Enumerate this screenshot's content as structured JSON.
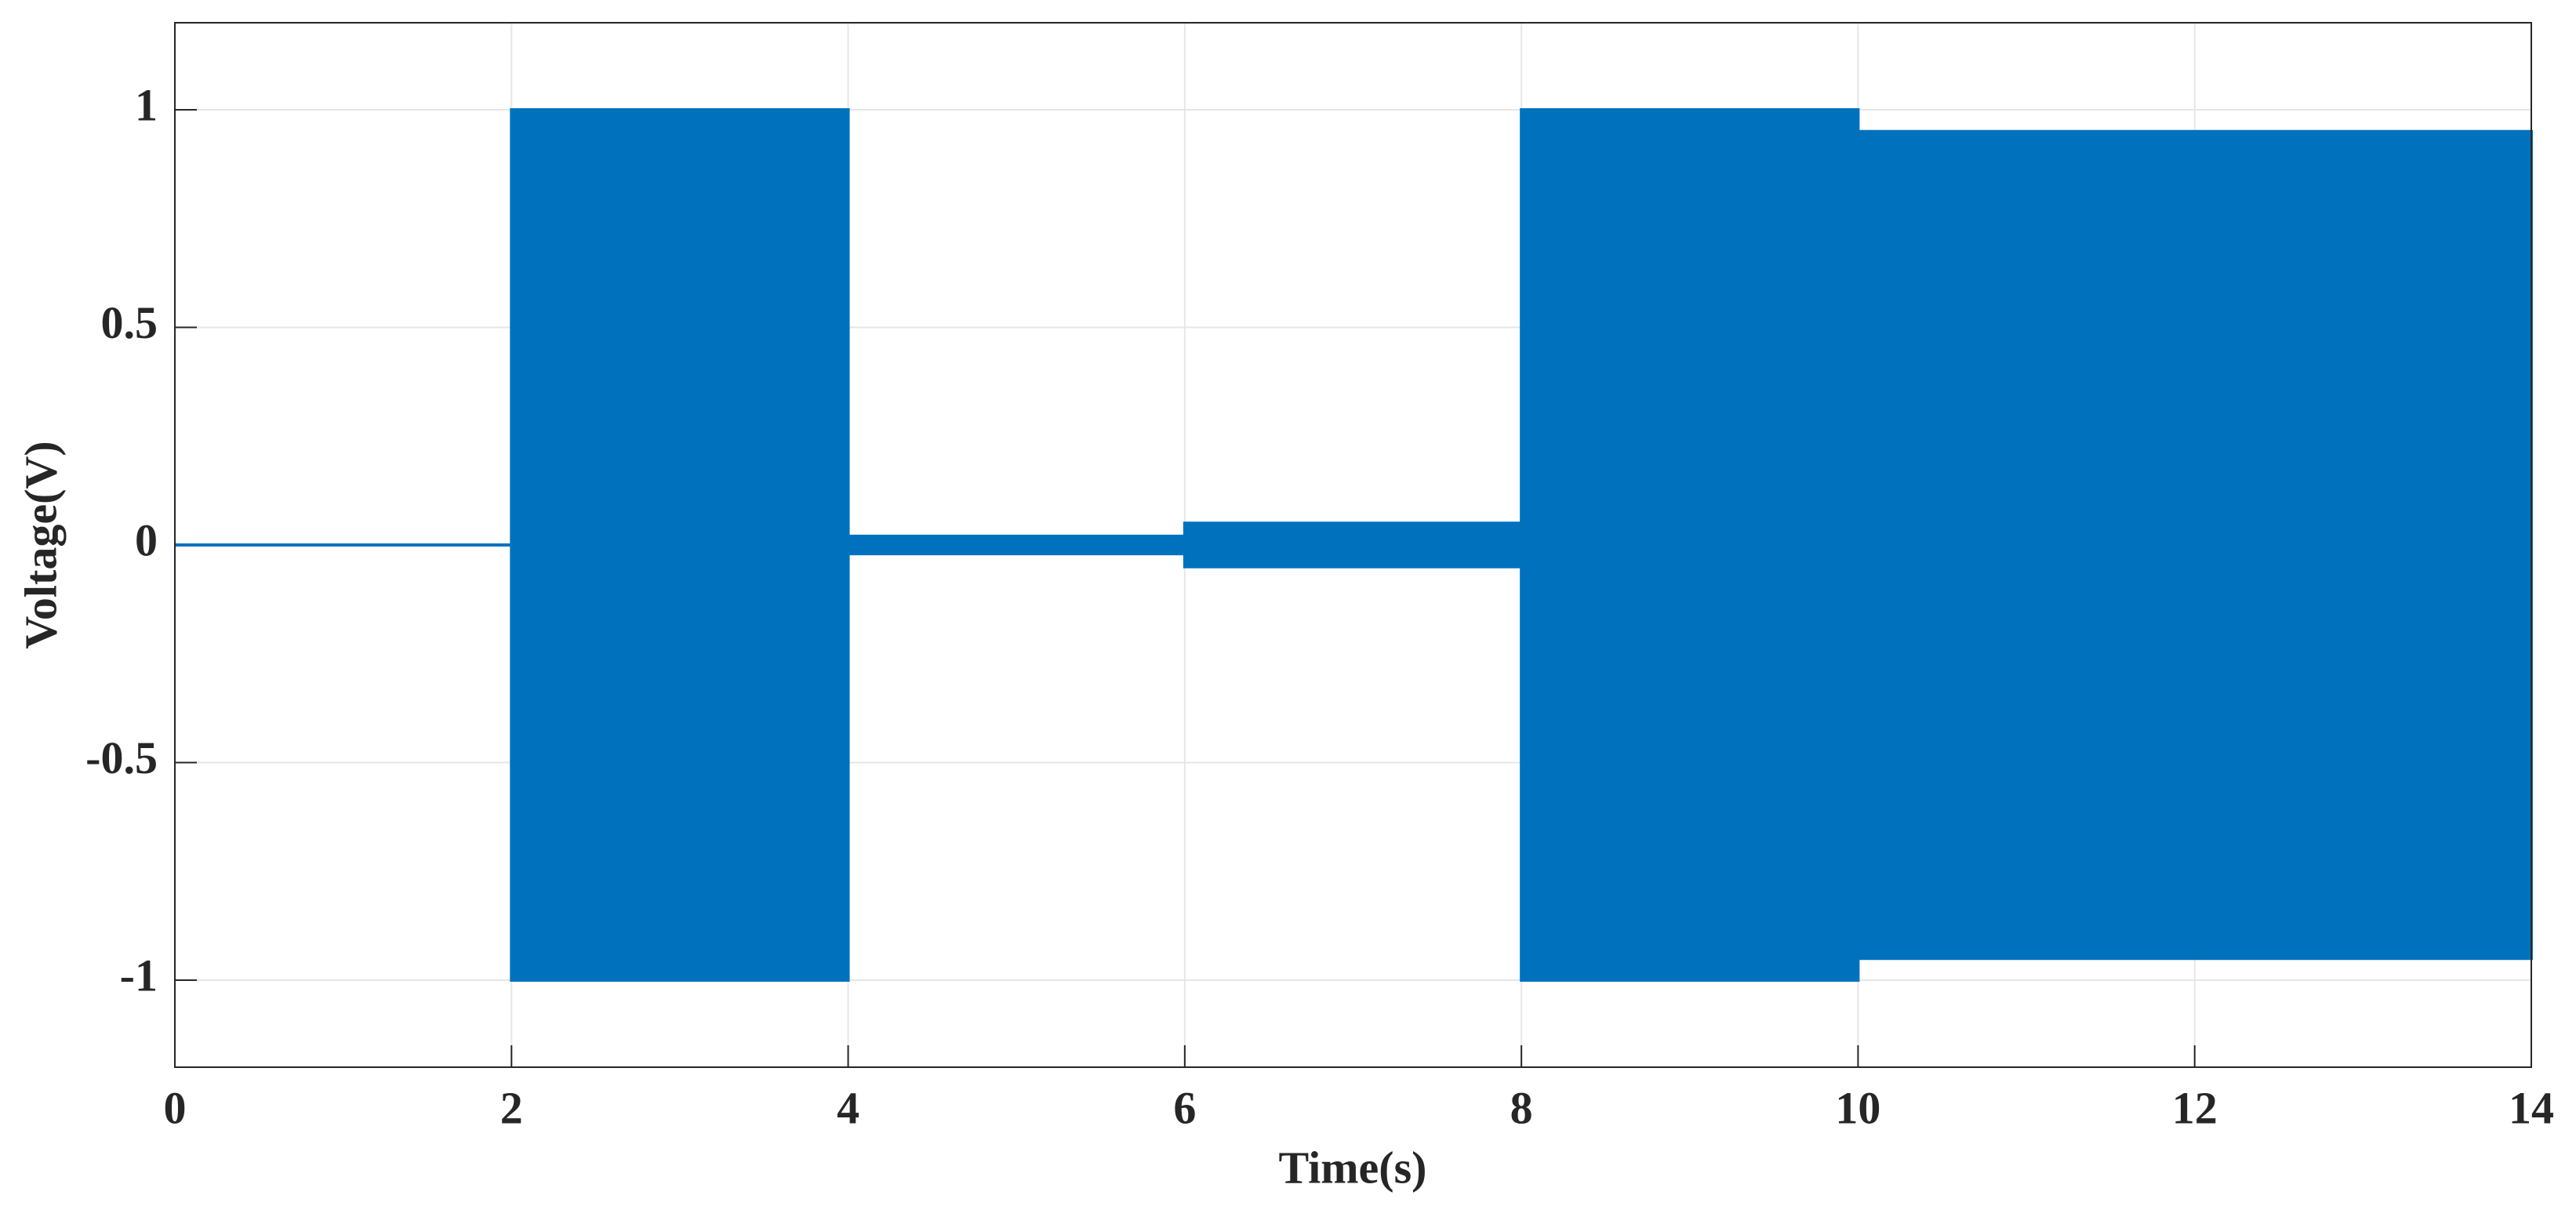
{
  "chart_data": {
    "type": "area",
    "x_label": "Time(s)",
    "y_label": "Voltage(V)",
    "x": [
      0,
      2,
      2,
      4,
      4,
      6,
      6,
      8,
      8,
      10,
      10,
      14
    ],
    "series": [
      {
        "color": "#0072bd",
        "values": [
          0,
          0,
          1,
          1,
          0.02,
          0.02,
          0.05,
          0.05,
          1,
          1,
          0.95,
          0.95
        ]
      },
      {
        "color": "#0072bd",
        "values": [
          0,
          0,
          -1,
          -1,
          -0.02,
          -0.02,
          -0.05,
          -0.05,
          -1,
          -1,
          -0.95,
          -0.95
        ]
      }
    ],
    "xlim": [
      0,
      14
    ],
    "xticks": [
      0,
      2,
      4,
      6,
      8,
      10,
      12,
      14
    ],
    "ylim": [
      -1.2,
      1.2
    ],
    "yticks": [
      -1,
      -0.5,
      0,
      0.5,
      1
    ],
    "grid": true
  }
}
